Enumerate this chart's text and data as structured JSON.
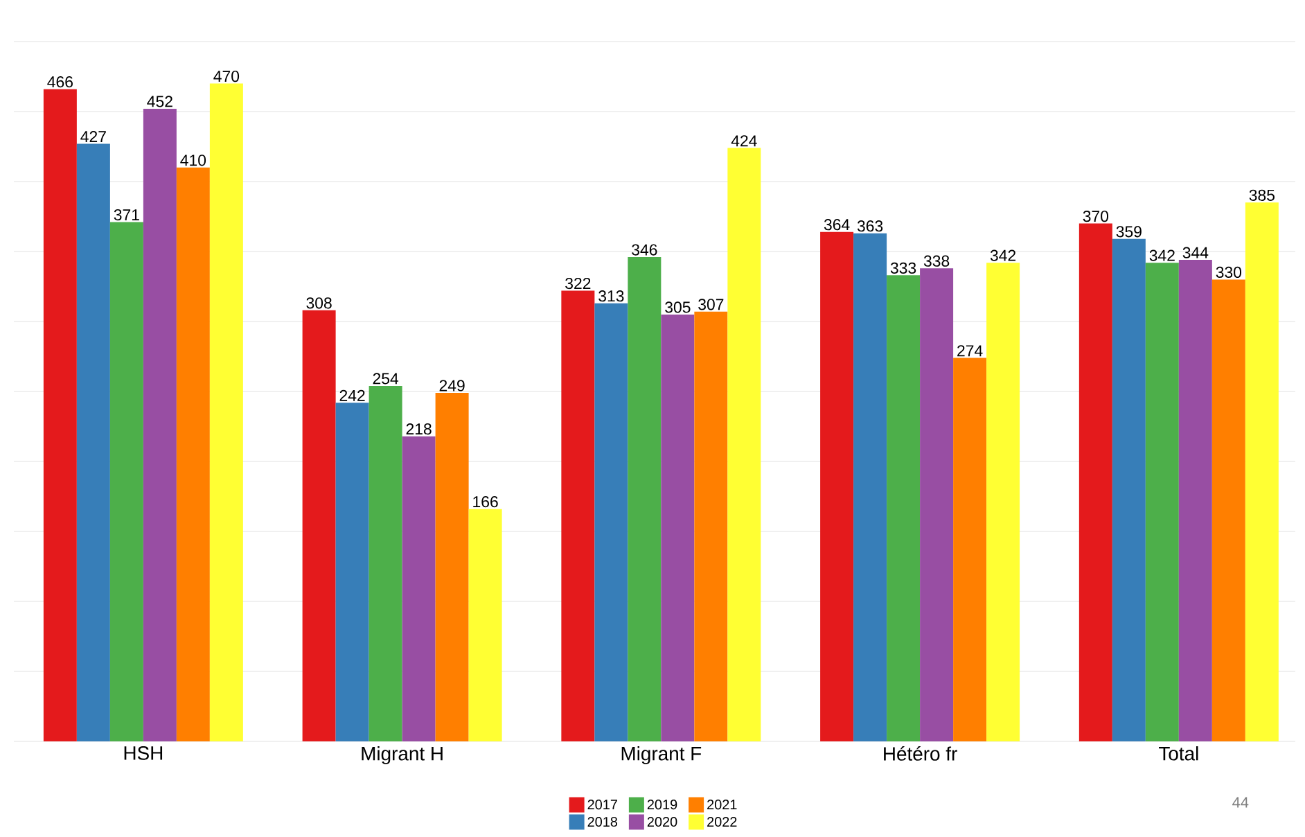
{
  "chart_data": {
    "type": "bar",
    "categories": [
      "HSH",
      "Migrant H",
      "Migrant F",
      "Hétéro fr",
      "Total"
    ],
    "series": [
      {
        "name": "2017",
        "color": "#e41a1c",
        "values": [
          466,
          308,
          322,
          364,
          370
        ]
      },
      {
        "name": "2018",
        "color": "#377eb8",
        "values": [
          427,
          242,
          313,
          363,
          359
        ]
      },
      {
        "name": "2019",
        "color": "#4daf4a",
        "values": [
          371,
          254,
          346,
          333,
          342
        ]
      },
      {
        "name": "2020",
        "color": "#984ea3",
        "values": [
          452,
          218,
          305,
          338,
          344
        ]
      },
      {
        "name": "2021",
        "color": "#ff7f00",
        "values": [
          410,
          249,
          307,
          274,
          330
        ]
      },
      {
        "name": "2022",
        "color": "#ffff33",
        "values": [
          470,
          166,
          424,
          342,
          385
        ]
      }
    ],
    "yticks": [
      {
        "value": 0,
        "label": null
      },
      {
        "value": 50,
        "label": null
      },
      {
        "value": 100,
        "label": null
      },
      {
        "value": 150,
        "label": null
      },
      {
        "value": 200,
        "label": null
      },
      {
        "value": 250,
        "label": null
      },
      {
        "value": 300,
        "label": null
      },
      {
        "value": 350,
        "label": null
      },
      {
        "value": 400,
        "label": null
      },
      {
        "value": 450,
        "label": null
      },
      {
        "value": 500,
        "label": null
      }
    ],
    "tick_labels": "x",
    "grid": "y",
    "legend": "bottom",
    "data_labels": true,
    "annotations": [
      "44"
    ]
  }
}
